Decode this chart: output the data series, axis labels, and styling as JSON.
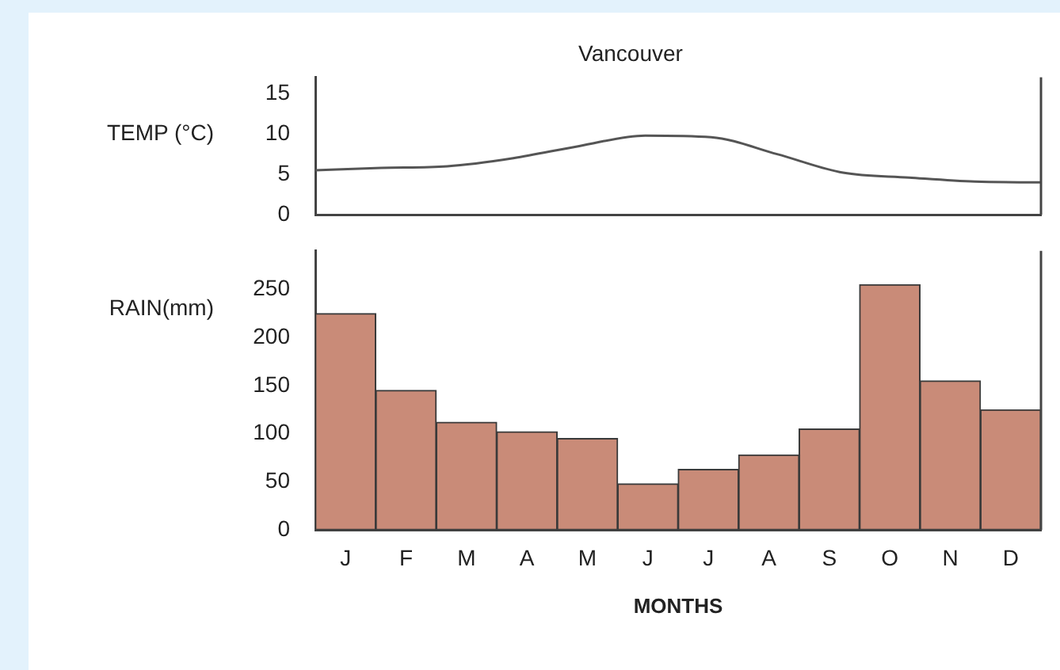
{
  "chart_data": [
    {
      "type": "line",
      "title": "Vancouver",
      "ylabel": "TEMP (°C)",
      "categories": [
        null,
        null,
        null,
        null,
        null,
        null,
        null,
        null,
        null,
        null,
        null,
        null
      ],
      "series": [
        {
          "color": "#555555",
          "values": [
            5.5,
            5.8,
            6.0,
            7.0,
            8.5,
            9.8,
            9.6,
            7.5,
            5.2,
            4.6,
            4.1,
            4.0
          ]
        }
      ],
      "ylim": [
        0,
        17
      ],
      "yticks": [
        0,
        5,
        10,
        15
      ],
      "tick_labels": "y",
      "grid": false,
      "legend": false,
      "marker": "none"
    },
    {
      "type": "bar",
      "xlabel": "MONTHS",
      "ylabel": "RAIN(mm)",
      "categories": [
        "J",
        "F",
        "M",
        "A",
        "M",
        "J",
        "J",
        "A",
        "S",
        "O",
        "N",
        "D"
      ],
      "series": [
        {
          "color": "#c98b78",
          "values": [
            225,
            145,
            112,
            102,
            95,
            48,
            63,
            78,
            105,
            255,
            155,
            125
          ]
        }
      ],
      "ylim": [
        0,
        290
      ],
      "yticks": [
        0,
        50,
        100,
        150,
        200,
        250
      ],
      "grid": false,
      "legend": false
    }
  ]
}
